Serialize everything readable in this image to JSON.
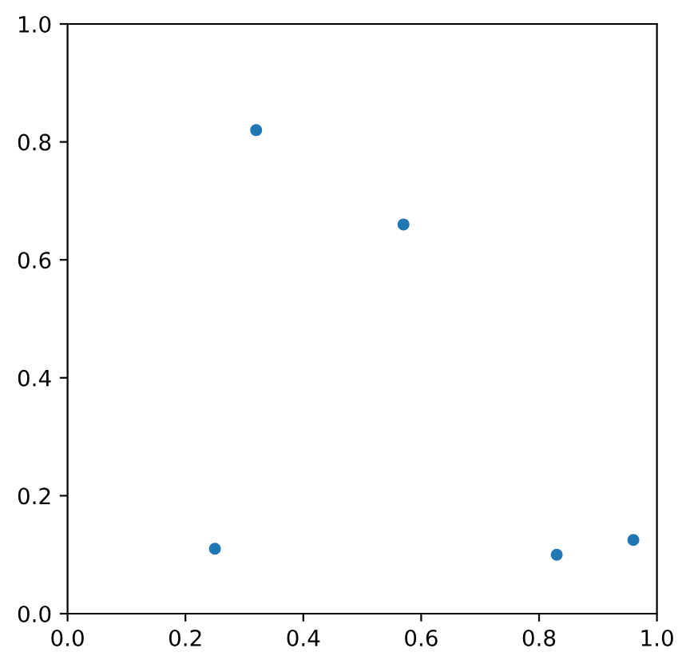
{
  "chart_data": {
    "type": "scatter",
    "x": [
      0.25,
      0.32,
      0.57,
      0.83,
      0.96
    ],
    "values": [
      0.11,
      0.82,
      0.66,
      0.1,
      0.125
    ],
    "color": "#1f77b4",
    "marker": "circle",
    "xlim": [
      0,
      1
    ],
    "ylim": [
      0,
      1
    ],
    "xticks": [
      {
        "value": 0,
        "label": "0.0"
      },
      0.2,
      0.4,
      0.6,
      0.8,
      {
        "value": 1,
        "label": "1.0"
      }
    ],
    "yticks": [
      {
        "value": 0,
        "label": "0.0"
      },
      0.2,
      0.4,
      0.6,
      0.8,
      {
        "value": 1,
        "label": "1.0"
      }
    ],
    "grid": false
  }
}
